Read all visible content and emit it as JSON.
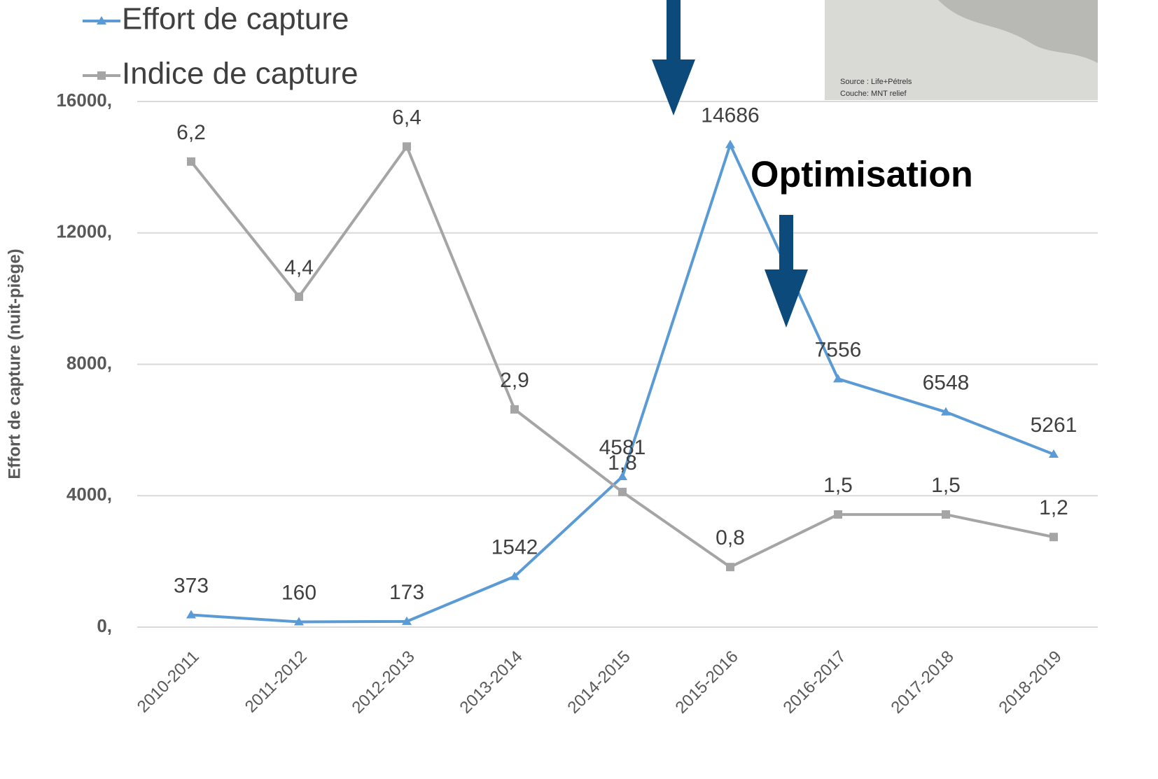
{
  "chart_data": {
    "type": "line",
    "y_axis_label": "Effort de capture (nuit-piège)",
    "annotations": [
      "Optimisation",
      "Source : Life+Pétrels",
      "Couche: MNT relief"
    ],
    "categories": [
      "2010-2011",
      "2011-2012",
      "2012-2013",
      "2013-2014",
      "2014-2015",
      "2015-2016",
      "2016-2017",
      "2017-2018",
      "2018-2019"
    ],
    "series": [
      {
        "name": "Effort de capture",
        "color": "#5b9bd5",
        "values": [
          373,
          160,
          173,
          1542,
          4581,
          14686,
          7556,
          6548,
          5261
        ]
      },
      {
        "name": "Indice de capture",
        "color": "#a5a5a5",
        "axis": "y2",
        "values": [
          6.2,
          4.4,
          6.4,
          2.9,
          1.8,
          0.8,
          1.5,
          1.5,
          1.2
        ],
        "value_labels": [
          "6,2",
          "4,4",
          "6,4",
          "2,9",
          "1,8",
          "0,8",
          "1,5",
          "1,5",
          "1,2"
        ]
      }
    ],
    "ylim": [
      0,
      16000
    ],
    "yticks": [
      {
        "value": 0,
        "label": "0,"
      },
      {
        "value": 4000,
        "label": "4000,"
      },
      {
        "value": 8000,
        "label": "8000,"
      },
      {
        "value": 12000,
        "label": "12000,"
      },
      {
        "value": 16000,
        "label": "16000,"
      }
    ],
    "y2lim": [
      0,
      7
    ],
    "grid": true,
    "legend": "top-left"
  }
}
